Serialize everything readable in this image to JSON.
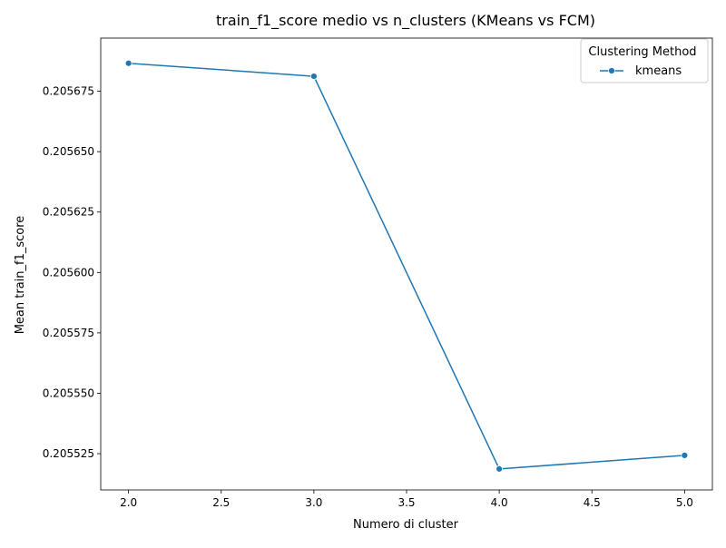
{
  "chart_data": {
    "type": "line",
    "title": "train_f1_score medio vs n_clusters (KMeans vs FCM)",
    "xlabel": "Numero di cluster",
    "ylabel": "Mean train_f1_score",
    "xlim": [
      1.85,
      5.15
    ],
    "ylim": [
      0.20551,
      0.205697
    ],
    "x_ticks": [
      2.0,
      2.5,
      3.0,
      3.5,
      4.0,
      4.5,
      5.0
    ],
    "x_tick_labels": [
      "2.0",
      "2.5",
      "3.0",
      "3.5",
      "4.0",
      "4.5",
      "5.0"
    ],
    "y_ticks": [
      0.205525,
      0.20555,
      0.205575,
      0.2056,
      0.205625,
      0.20565,
      0.205675
    ],
    "y_tick_labels": [
      "0.205525",
      "0.205550",
      "0.205575",
      "0.205600",
      "0.205625",
      "0.205650",
      "0.205675"
    ],
    "grid": false,
    "legend": {
      "title": "Clustering Method",
      "placement": "top-right"
    },
    "series": [
      {
        "name": "kmeans",
        "color": "#1f77b4",
        "marker": "circle",
        "x": [
          2.0,
          3.0,
          4.0,
          5.0
        ],
        "y": [
          0.2056866,
          0.2056812,
          0.2055187,
          0.2055243
        ]
      }
    ]
  }
}
